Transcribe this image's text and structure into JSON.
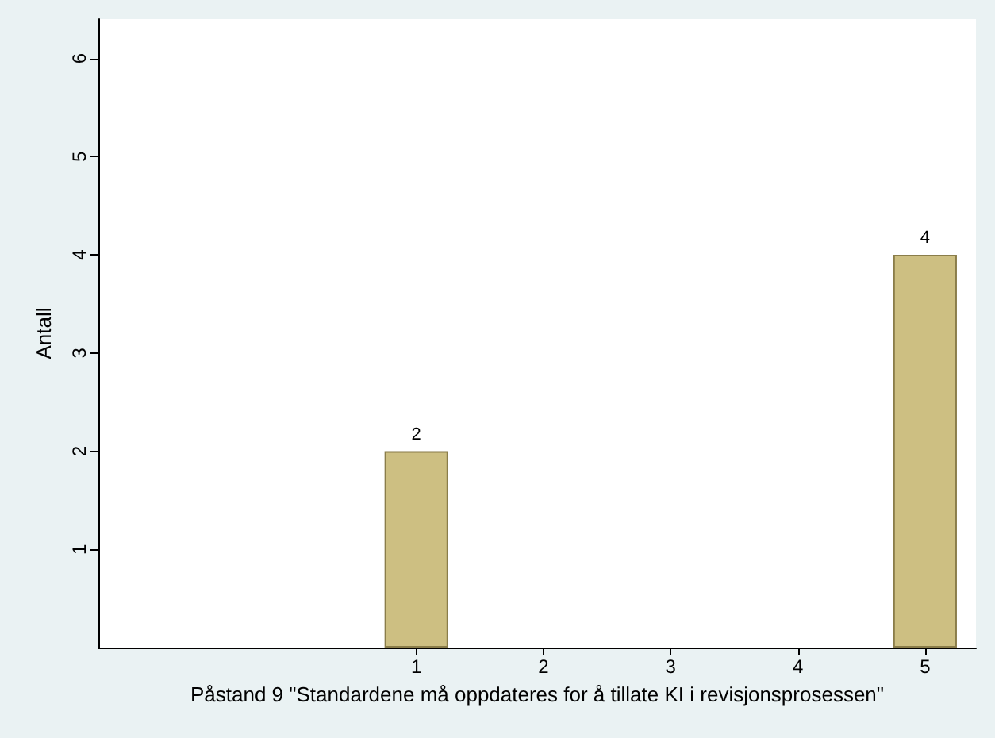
{
  "chart_data": {
    "type": "bar",
    "x": [
      1,
      5
    ],
    "values": [
      2,
      4
    ],
    "color": "#cdbf82",
    "data_labels": true,
    "xlabel": "Påstand 9 \"Standardene må oppdateres for å tillate KI i revisjonsprosessen\"",
    "ylabel": "Antall",
    "xlim": [
      -1.5,
      5.4
    ],
    "xticks": [
      1,
      2,
      3,
      4,
      5
    ],
    "ylim": [
      0,
      6.4
    ],
    "yticks": [
      1,
      2,
      3,
      4,
      5,
      6
    ],
    "grid": false
  }
}
